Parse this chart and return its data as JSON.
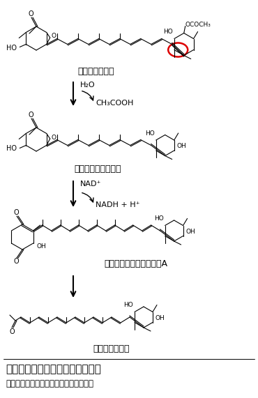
{
  "title": "図２　フコキサンチンの代謝経路",
  "subtitle": "赤線で囲んだ部分にアレン結合をもつ。",
  "label1": "フコキサンチン",
  "label2": "フコキサンチノール",
  "label3": "アマローシアキサンチンA",
  "label4": "パラセントロン",
  "bg_color": "#ffffff",
  "text_color": "#000000",
  "red_circle_color": "#dd0000",
  "figsize": [
    3.7,
    5.71
  ],
  "dpi": 100
}
